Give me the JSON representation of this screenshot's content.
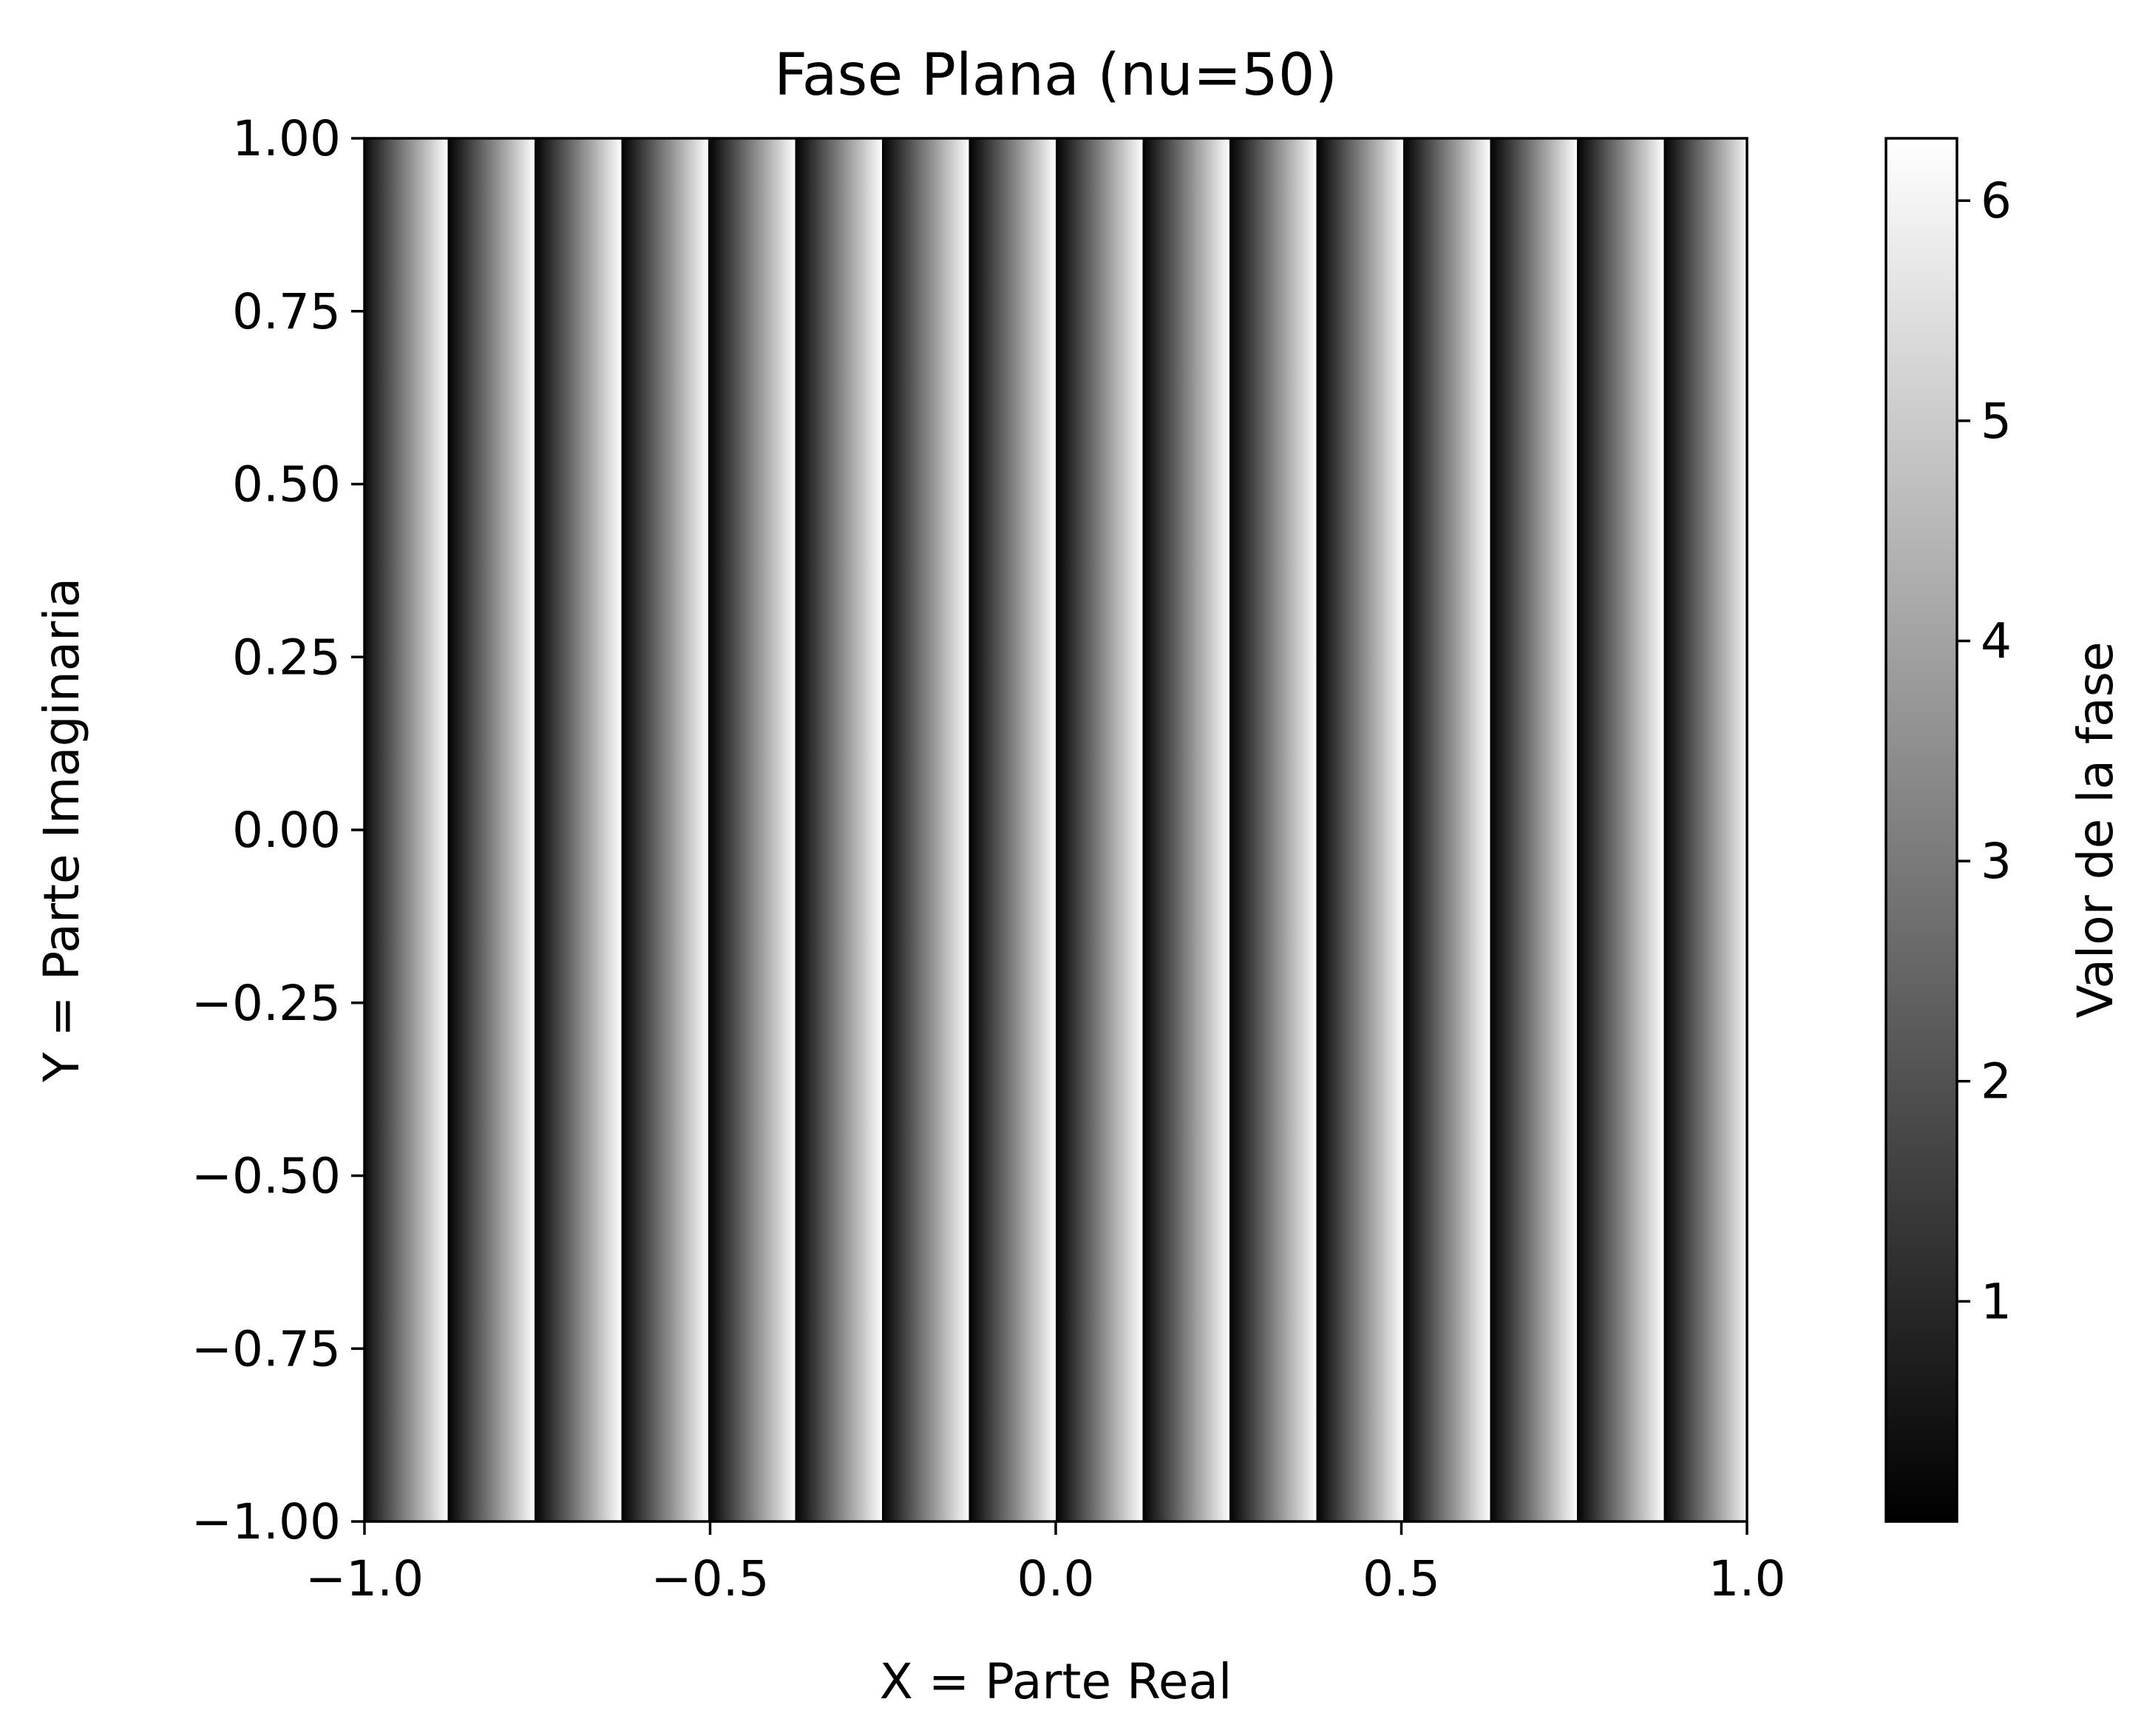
{
  "chart_data": {
    "type": "heatmap",
    "title": "Fase Plana (nu=50)",
    "xlabel": "X = Parte Real",
    "ylabel": "Y = Parte Imaginaria",
    "xlim": [
      -1.0,
      1.0
    ],
    "ylim": [
      -1.0,
      1.0
    ],
    "grid": false,
    "function": "phase = mod(nu * x, 2*pi), constant along y",
    "nu": 50,
    "x_ticks": [
      -1.0,
      -0.5,
      0.0,
      0.5,
      1.0
    ],
    "x_tick_labels": [
      "−1.0",
      "−0.5",
      "0.0",
      "0.5",
      "1.0"
    ],
    "y_ticks": [
      1.0,
      0.75,
      0.5,
      0.25,
      0.0,
      -0.25,
      -0.5,
      -0.75,
      -1.0
    ],
    "y_tick_labels": [
      "1.00",
      "0.75",
      "0.50",
      "0.25",
      "0.00",
      "−0.25",
      "−0.50",
      "−0.75",
      "−1.00"
    ],
    "colormap": "gray",
    "colorbar": {
      "label": "Valor de la fase",
      "range": [
        0.0,
        6.283
      ],
      "ticks": [
        1,
        2,
        3,
        4,
        5,
        6
      ],
      "tick_labels": [
        "1",
        "2",
        "3",
        "4",
        "5",
        "6"
      ]
    }
  },
  "colors": {
    "axis": "#000000",
    "background": "#ffffff",
    "colormap_low": "#000000",
    "colormap_high": "#ffffff"
  }
}
